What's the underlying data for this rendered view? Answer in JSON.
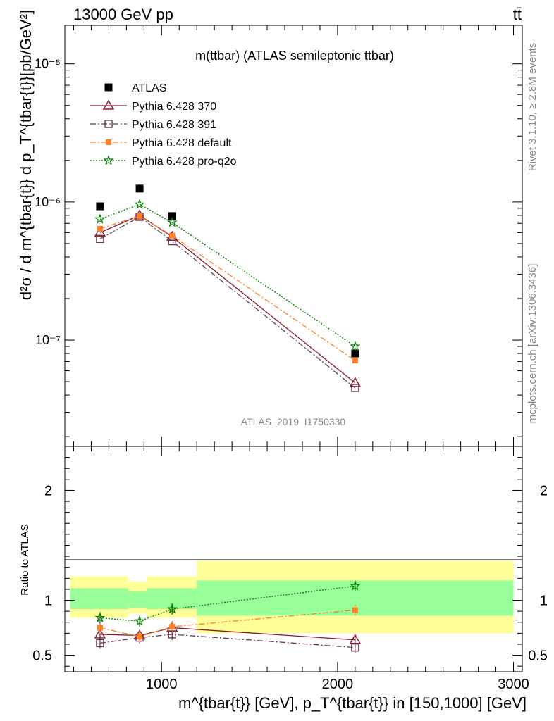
{
  "header": {
    "left": "13000 GeV pp",
    "right": "tt̄"
  },
  "side": {
    "rivet": "Rivet 3.1.10, ≥ 2.8M events",
    "mcplots": "mcplots.cern.ch [arXiv:1306.3436]"
  },
  "watermark": "ATLAS_2019_I1750330",
  "colors": {
    "atlas": "#000000",
    "p370": "#8b1a2b",
    "p391": "#6b3a57",
    "pdef": "#ff7f2a",
    "pq2o": "#008000",
    "band_outer": "#ffff99",
    "band_inner": "#99ff99"
  },
  "chart_data": [
    {
      "type": "line",
      "title": "m(ttbar) (ATLAS semileptonic ttbar)",
      "ylabel": "d²σ / d m^{tbar{t}} d p_T^{tbar{t}}[pb/GeV²]",
      "yscale": "log",
      "ylim": [
        1.7e-08,
        1.9e-05
      ],
      "xlim": [
        450,
        3050
      ],
      "ytick_labels": [
        "10⁻⁵",
        "10⁻⁶",
        "10⁻⁷"
      ],
      "legend_position": "top-left",
      "x": [
        650,
        875,
        1060,
        2100
      ],
      "series": [
        {
          "name": "ATLAS",
          "values": [
            9.3e-07,
            1.25e-06,
            7.9e-07,
            8e-08
          ],
          "marker": "filled-square"
        },
        {
          "name": "Pythia 6.428 370",
          "values": [
            6e-07,
            8e-07,
            5.6e-07,
            4.9e-08
          ],
          "marker": "open-triangle",
          "dash": "solid"
        },
        {
          "name": "Pythia 6.428 391",
          "values": [
            5.4e-07,
            7.8e-07,
            5.2e-07,
            4.5e-08
          ],
          "marker": "open-square",
          "dash": "dashdot"
        },
        {
          "name": "Pythia 6.428 default",
          "values": [
            6.4e-07,
            7.9e-07,
            5.7e-07,
            7.1e-08
          ],
          "marker": "filled-small-square",
          "dash": "dashdot"
        },
        {
          "name": "Pythia 6.428 pro-q2o",
          "values": [
            7.5e-07,
            9.6e-07,
            7.1e-07,
            9e-08
          ],
          "marker": "star",
          "dash": "dotted"
        }
      ]
    },
    {
      "type": "line",
      "ylabel": "Ratio to ATLAS",
      "xlabel": "m^{tbar{t}} [GeV], p_T^{tbar{t}} in [150,1000] [GeV]",
      "ylim": [
        0.35,
        2.4
      ],
      "xlim": [
        450,
        3050
      ],
      "x_ticks": [
        1000,
        2000,
        3000
      ],
      "x_tick_labels": [
        "1000",
        "2000",
        "3000"
      ],
      "y_ticks": [
        0.5,
        1,
        2
      ],
      "y_tick_labels": [
        "0.5",
        "1",
        "2"
      ],
      "bands": [
        {
          "x0": 480,
          "x1": 810,
          "inner": [
            0.92,
            1.11
          ],
          "outer": [
            0.84,
            1.22
          ]
        },
        {
          "x0": 810,
          "x1": 915,
          "inner": [
            0.93,
            1.08
          ],
          "outer": [
            0.88,
            1.17
          ]
        },
        {
          "x0": 915,
          "x1": 1200,
          "inner": [
            0.92,
            1.11
          ],
          "outer": [
            0.84,
            1.22
          ]
        },
        {
          "x0": 1200,
          "x1": 3000,
          "inner": [
            0.86,
            1.18
          ],
          "outer": [
            0.7,
            1.36
          ]
        }
      ],
      "x": [
        650,
        875,
        1060,
        2100
      ],
      "series": [
        {
          "name": "Pythia 6.428 370",
          "values": [
            0.69,
            0.68,
            0.75,
            0.64
          ]
        },
        {
          "name": "Pythia 6.428 391",
          "values": [
            0.61,
            0.66,
            0.69,
            0.57
          ]
        },
        {
          "name": "Pythia 6.428 default",
          "values": [
            0.75,
            0.67,
            0.76,
            0.91
          ]
        },
        {
          "name": "Pythia 6.428 pro-q2o",
          "values": [
            0.84,
            0.81,
            0.92,
            1.13
          ]
        }
      ]
    }
  ]
}
